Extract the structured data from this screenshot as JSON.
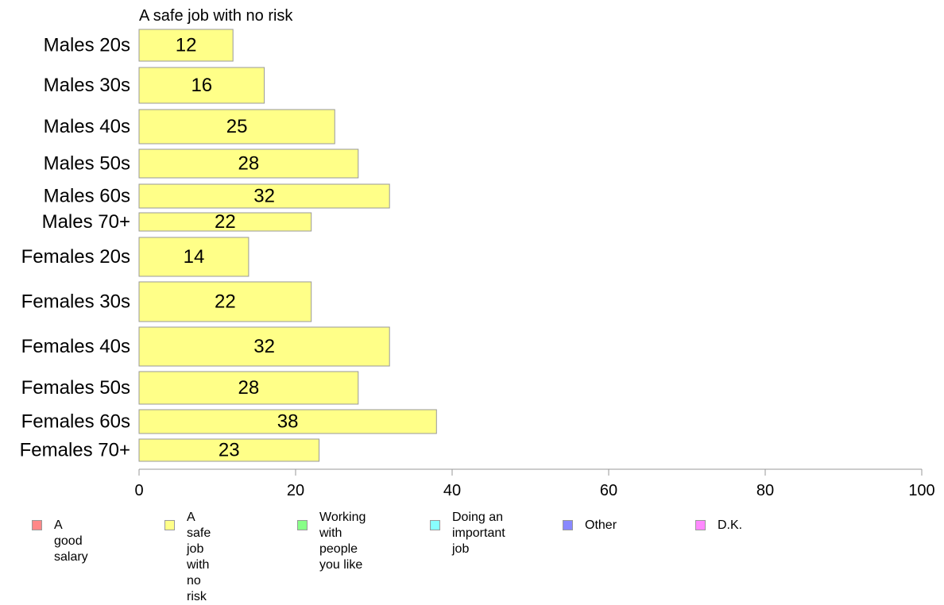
{
  "chart_data": {
    "type": "bar",
    "orientation": "horizontal",
    "title": "A safe job with no risk",
    "xlabel": "",
    "ylabel": "",
    "xlim": [
      0,
      100
    ],
    "xticks": [
      0,
      20,
      40,
      60,
      80,
      100
    ],
    "categories": [
      "Males 20s",
      "Males 30s",
      "Males 40s",
      "Males 50s",
      "Males 60s",
      "Males 70+",
      "Females 20s",
      "Females 30s",
      "Females 40s",
      "Females 50s",
      "Females 60s",
      "Females 70+"
    ],
    "values": [
      12,
      16,
      25,
      28,
      32,
      22,
      14,
      22,
      32,
      28,
      38,
      23
    ],
    "data_labels": [
      "12",
      "16",
      "25",
      "28",
      "32",
      "22",
      "14",
      "22",
      "32",
      "28",
      "38",
      "23"
    ],
    "bar_color": "#ffff88",
    "grid": false,
    "legend_placement": "bottom"
  },
  "legend": [
    {
      "label": "A good salary",
      "color": "#ff8888"
    },
    {
      "label": "A safe job\nwith no risk",
      "color": "#ffff88"
    },
    {
      "label": "Working with\npeople you like",
      "color": "#88ff88"
    },
    {
      "label": "Doing an\nimportant job",
      "color": "#88ffff"
    },
    {
      "label": "Other",
      "color": "#8888ff"
    },
    {
      "label": "D.K.",
      "color": "#ff88ff"
    }
  ]
}
